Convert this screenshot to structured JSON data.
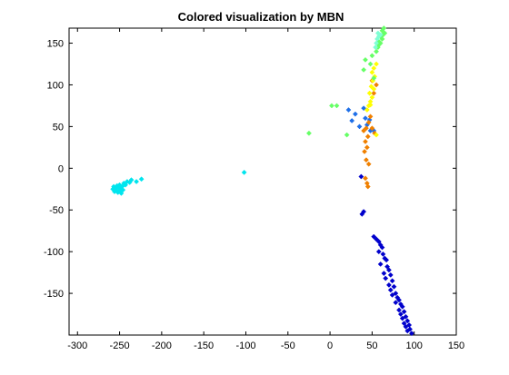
{
  "chart_data": {
    "type": "scatter",
    "title": "Colored visualization by MBN",
    "xlabel": "",
    "ylabel": "",
    "xlim": [
      -310,
      150
    ],
    "ylim": [
      -200,
      168
    ],
    "xticks": [
      -300,
      -250,
      -200,
      -150,
      -100,
      -50,
      0,
      50,
      100,
      150
    ],
    "yticks": [
      150,
      100,
      50,
      0,
      -50,
      -100,
      -150
    ],
    "grid": false,
    "marker": "diamond",
    "series": [
      {
        "color": "#00e5ee",
        "points": [
          [
            -258,
            -25
          ],
          [
            -257,
            -22
          ],
          [
            -256,
            -28
          ],
          [
            -255,
            -24
          ],
          [
            -254,
            -26
          ],
          [
            -253,
            -21
          ],
          [
            -252,
            -29
          ],
          [
            -251,
            -23
          ],
          [
            -250,
            -27
          ],
          [
            -250,
            -20
          ],
          [
            -249,
            -24
          ],
          [
            -248,
            -30
          ],
          [
            -247,
            -22
          ],
          [
            -246,
            -26
          ],
          [
            -245,
            -18
          ],
          [
            -243,
            -20
          ],
          [
            -241,
            -16
          ],
          [
            -238,
            -17
          ],
          [
            -236,
            -14
          ],
          [
            -230,
            -16
          ],
          [
            -224,
            -13
          ],
          [
            -102,
            -5
          ]
        ]
      },
      {
        "color": "#0000cc",
        "points": [
          [
            38,
            -55
          ],
          [
            40,
            -52
          ],
          [
            37,
            -10
          ],
          [
            52,
            -82
          ],
          [
            55,
            -85
          ],
          [
            58,
            -88
          ],
          [
            60,
            -92
          ],
          [
            62,
            -95
          ],
          [
            58,
            -100
          ],
          [
            63,
            -103
          ],
          [
            65,
            -108
          ],
          [
            67,
            -110
          ],
          [
            60,
            -115
          ],
          [
            68,
            -118
          ],
          [
            70,
            -122
          ],
          [
            64,
            -126
          ],
          [
            72,
            -128
          ],
          [
            66,
            -132
          ],
          [
            74,
            -135
          ],
          [
            70,
            -140
          ],
          [
            76,
            -142
          ],
          [
            72,
            -146
          ],
          [
            78,
            -150
          ],
          [
            74,
            -152
          ],
          [
            80,
            -155
          ],
          [
            82,
            -158
          ],
          [
            78,
            -161
          ],
          [
            84,
            -163
          ],
          [
            86,
            -166
          ],
          [
            82,
            -170
          ],
          [
            88,
            -172
          ],
          [
            84,
            -175
          ],
          [
            90,
            -178
          ],
          [
            86,
            -180
          ],
          [
            92,
            -183
          ],
          [
            88,
            -186
          ],
          [
            94,
            -188
          ],
          [
            90,
            -190
          ],
          [
            95,
            -193
          ],
          [
            92,
            -195
          ],
          [
            97,
            -198
          ]
        ]
      },
      {
        "color": "#1e6fe8",
        "points": [
          [
            30,
            65
          ],
          [
            22,
            70
          ],
          [
            26,
            57
          ],
          [
            40,
            72
          ],
          [
            42,
            60
          ],
          [
            47,
            58
          ],
          [
            44,
            52
          ],
          [
            35,
            50
          ],
          [
            48,
            45
          ],
          [
            52,
            45
          ]
        ]
      },
      {
        "color": "#f08000",
        "points": [
          [
            42,
            -12
          ],
          [
            44,
            -18
          ],
          [
            45,
            -22
          ],
          [
            46,
            5
          ],
          [
            43,
            10
          ],
          [
            41,
            20
          ],
          [
            44,
            25
          ],
          [
            42,
            32
          ],
          [
            45,
            38
          ],
          [
            40,
            45
          ],
          [
            43,
            48
          ],
          [
            50,
            48
          ],
          [
            46,
            55
          ],
          [
            48,
            62
          ],
          [
            52,
            90
          ],
          [
            55,
            100
          ],
          [
            50,
            105
          ],
          [
            53,
            42
          ]
        ]
      },
      {
        "color": "#ffff00",
        "points": [
          [
            44,
            70
          ],
          [
            46,
            75
          ],
          [
            48,
            80
          ],
          [
            50,
            85
          ],
          [
            47,
            90
          ],
          [
            52,
            95
          ],
          [
            49,
            98
          ],
          [
            51,
            105
          ],
          [
            53,
            110
          ],
          [
            50,
            115
          ],
          [
            52,
            120
          ],
          [
            55,
            125
          ],
          [
            48,
            76
          ],
          [
            55,
            40
          ]
        ]
      },
      {
        "color": "#66ff66",
        "points": [
          [
            -25,
            42
          ],
          [
            20,
            40
          ],
          [
            2,
            75
          ],
          [
            8,
            75
          ],
          [
            52,
            108
          ],
          [
            40,
            118
          ],
          [
            42,
            130
          ],
          [
            50,
            135
          ],
          [
            55,
            140
          ],
          [
            57,
            145
          ],
          [
            58,
            148
          ],
          [
            60,
            150
          ],
          [
            48,
            125
          ],
          [
            62,
            155
          ],
          [
            63,
            160
          ],
          [
            65,
            162
          ],
          [
            60,
            158
          ],
          [
            62,
            165
          ],
          [
            64,
            168
          ],
          [
            58,
            152
          ]
        ]
      },
      {
        "color": "#7fffd4",
        "points": [
          [
            55,
            150
          ],
          [
            56,
            155
          ],
          [
            58,
            158
          ],
          [
            60,
            160
          ],
          [
            54,
            145
          ],
          [
            57,
            162
          ]
        ]
      }
    ]
  }
}
